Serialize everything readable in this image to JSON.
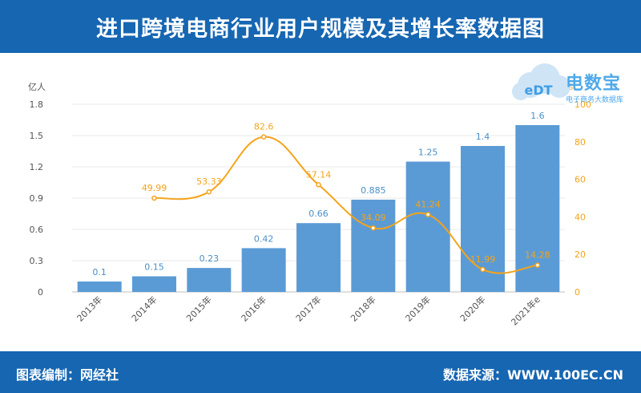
{
  "title": "进口跨境电商行业用户规模及其增长率数据图",
  "footer": {
    "left": "图表编制：网经社",
    "right": "数据来源：WWW.100EC.CN"
  },
  "logo": {
    "badge": "eDT",
    "name": "电数宝",
    "subtitle": "电子商务大数据库"
  },
  "colors": {
    "header": "#1666b2",
    "bar": "#5b9bd5",
    "line": "#f5a31a",
    "bar_label": "#4a90c8",
    "line_label": "#f5a31a"
  },
  "chart_data": {
    "type": "bar",
    "categories": [
      "2013年",
      "2014年",
      "2015年",
      "2016年",
      "2017年",
      "2018年",
      "2019年",
      "2020年",
      "2021年e"
    ],
    "y_left": {
      "unit": "亿人",
      "ylim": [
        0,
        1.8
      ],
      "ticks": [
        "0",
        "0.3",
        "0.6",
        "0.9",
        "1.2",
        "1.5",
        "1.8"
      ]
    },
    "y_right": {
      "unit": "%",
      "ylim": [
        0,
        100
      ],
      "ticks": [
        "0",
        "20",
        "40",
        "60",
        "80",
        "100"
      ]
    },
    "series": [
      {
        "type": "bar",
        "axis": "left",
        "values": [
          0.1,
          0.15,
          0.23,
          0.42,
          0.66,
          0.885,
          1.25,
          1.4,
          1.6
        ]
      },
      {
        "type": "line",
        "axis": "right",
        "smooth": true,
        "values": [
          null,
          49.99,
          53.33,
          82.6,
          57.14,
          34.09,
          41.24,
          11.99,
          14.28
        ]
      }
    ],
    "grid": true
  }
}
